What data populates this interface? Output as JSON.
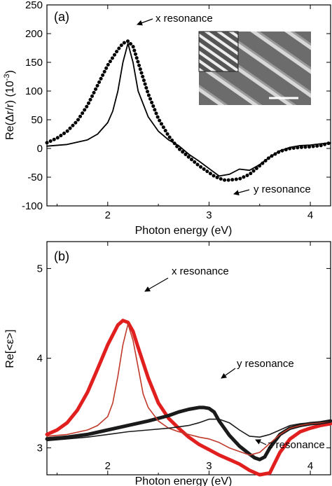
{
  "chart_data": [
    {
      "panel_label": "(a)",
      "type": "line",
      "xlabel": "Photon energy (eV)",
      "ylabel": "Re(Δr/r) (10",
      "ylabel_exp": "-3",
      "ylabel_close": ")",
      "xlim": [
        1.4,
        4.2
      ],
      "ylim": [
        -100,
        250
      ],
      "xticks": [
        "2",
        "3",
        "4"
      ],
      "yticks": [
        "-100",
        "-50",
        "0",
        "50",
        "100",
        "150",
        "200",
        "250"
      ],
      "annotations": [
        "x resonance",
        "y resonance"
      ],
      "inset": "SEM image with scale bar",
      "series": [
        {
          "style": "dotted-thick",
          "color": "#000000",
          "x": [
            1.4,
            1.5,
            1.6,
            1.7,
            1.8,
            1.9,
            2.0,
            2.1,
            2.15,
            2.2,
            2.25,
            2.3,
            2.4,
            2.5,
            2.6,
            2.7,
            2.8,
            2.9,
            3.0,
            3.05,
            3.1,
            3.15,
            3.2,
            3.3,
            3.4,
            3.5,
            3.6,
            3.7,
            3.8,
            3.9,
            4.0,
            4.1,
            4.2
          ],
          "y": [
            10,
            18,
            30,
            48,
            75,
            110,
            145,
            172,
            183,
            187,
            178,
            150,
            95,
            52,
            22,
            0,
            -15,
            -30,
            -42,
            -48,
            -52,
            -55,
            -55,
            -53,
            -45,
            -30,
            -15,
            -5,
            0,
            2,
            3,
            5,
            10
          ]
        },
        {
          "style": "solid-thin",
          "color": "#000000",
          "x": [
            1.4,
            1.6,
            1.8,
            1.9,
            2.0,
            2.05,
            2.1,
            2.15,
            2.2,
            2.25,
            2.3,
            2.4,
            2.5,
            2.6,
            2.7,
            2.8,
            2.9,
            3.0,
            3.1,
            3.2,
            3.3,
            3.4,
            3.5,
            3.6,
            3.7,
            3.8,
            3.9,
            4.0,
            4.1,
            4.2
          ],
          "y": [
            4,
            7,
            15,
            25,
            45,
            65,
            100,
            150,
            183,
            150,
            100,
            55,
            30,
            15,
            5,
            -10,
            -22,
            -35,
            -48,
            -45,
            -36,
            -38,
            -28,
            -15,
            -4,
            2,
            5,
            6,
            8,
            10
          ]
        }
      ]
    },
    {
      "panel_label": "(b)",
      "type": "line",
      "xlabel": "Photon energy (eV)",
      "ylabel": "Re[<ε>]",
      "xlim": [
        1.4,
        4.2
      ],
      "ylim": [
        2.7,
        5.3
      ],
      "xticks": [
        "2",
        "3",
        "4"
      ],
      "yticks": [
        "3",
        "4",
        "5"
      ],
      "annotations": [
        "x resonance",
        "y resonance",
        "z resonance"
      ],
      "series": [
        {
          "style": "thick",
          "color": "#e21f1f",
          "x": [
            1.4,
            1.5,
            1.6,
            1.7,
            1.8,
            1.9,
            2.0,
            2.1,
            2.15,
            2.2,
            2.25,
            2.3,
            2.4,
            2.5,
            2.6,
            2.7,
            2.8,
            2.9,
            3.0,
            3.1,
            3.2,
            3.3,
            3.4,
            3.5,
            3.6,
            3.7,
            3.8,
            3.9,
            4.0,
            4.1,
            4.2
          ],
          "y": [
            3.15,
            3.2,
            3.28,
            3.42,
            3.62,
            3.88,
            4.15,
            4.37,
            4.42,
            4.4,
            4.3,
            4.12,
            3.78,
            3.5,
            3.33,
            3.22,
            3.12,
            3.04,
            2.98,
            2.92,
            2.87,
            2.82,
            2.75,
            2.7,
            2.72,
            2.95,
            3.1,
            3.18,
            3.22,
            3.25,
            3.27
          ]
        },
        {
          "style": "thick",
          "color": "#1a1a1a",
          "x": [
            1.4,
            1.6,
            1.8,
            2.0,
            2.2,
            2.4,
            2.6,
            2.7,
            2.8,
            2.9,
            2.95,
            3.0,
            3.05,
            3.1,
            3.2,
            3.3,
            3.4,
            3.45,
            3.5,
            3.55,
            3.6,
            3.7,
            3.8,
            3.9,
            4.0,
            4.1,
            4.2
          ],
          "y": [
            3.1,
            3.12,
            3.15,
            3.2,
            3.25,
            3.3,
            3.36,
            3.4,
            3.43,
            3.45,
            3.45,
            3.44,
            3.4,
            3.3,
            3.14,
            3.02,
            2.93,
            2.89,
            2.87,
            2.9,
            3.0,
            3.15,
            3.22,
            3.25,
            3.27,
            3.28,
            3.3
          ]
        },
        {
          "style": "thin",
          "color": "#c0392b",
          "x": [
            1.4,
            1.6,
            1.8,
            1.9,
            2.0,
            2.05,
            2.1,
            2.15,
            2.2,
            2.25,
            2.3,
            2.35,
            2.4,
            2.5,
            2.6,
            2.7,
            2.8,
            2.9,
            3.0,
            3.1,
            3.2,
            3.3,
            3.4,
            3.5,
            3.6,
            3.7,
            3.8,
            3.9,
            4.0,
            4.1,
            4.2
          ],
          "y": [
            3.13,
            3.15,
            3.2,
            3.25,
            3.35,
            3.5,
            3.8,
            4.15,
            4.38,
            4.2,
            3.9,
            3.6,
            3.45,
            3.3,
            3.22,
            3.18,
            3.15,
            3.12,
            3.1,
            3.06,
            3.0,
            2.96,
            2.92,
            2.95,
            3.05,
            3.15,
            3.22,
            3.25,
            3.27,
            3.28,
            3.3
          ]
        },
        {
          "style": "thin",
          "color": "#1a1a1a",
          "x": [
            1.4,
            1.6,
            1.8,
            2.0,
            2.2,
            2.4,
            2.6,
            2.8,
            2.9,
            3.0,
            3.1,
            3.2,
            3.3,
            3.4,
            3.5,
            3.6,
            3.7,
            3.8,
            3.9,
            4.0,
            4.1,
            4.2
          ],
          "y": [
            3.08,
            3.1,
            3.12,
            3.15,
            3.18,
            3.2,
            3.22,
            3.25,
            3.28,
            3.32,
            3.32,
            3.28,
            3.2,
            3.13,
            3.12,
            3.15,
            3.2,
            3.25,
            3.27,
            3.28,
            3.29,
            3.3
          ]
        }
      ]
    }
  ]
}
